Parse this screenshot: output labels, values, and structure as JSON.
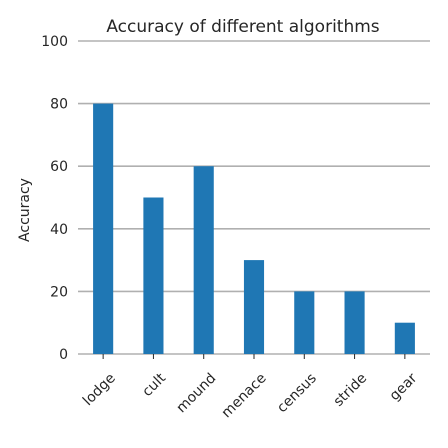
{
  "chart_data": {
    "type": "bar",
    "title": "Accuracy of different algorithms",
    "xlabel": "",
    "ylabel": "Accuracy",
    "categories": [
      "lodge",
      "cult",
      "mound",
      "menace",
      "census",
      "stride",
      "gear"
    ],
    "values": [
      80,
      50,
      60,
      30,
      20,
      20,
      10
    ],
    "ylim": [
      0,
      100
    ],
    "yticks": [
      "0",
      "20",
      "40",
      "60",
      "80",
      "100"
    ],
    "grid": true,
    "bar_color": "#1f77b4"
  }
}
